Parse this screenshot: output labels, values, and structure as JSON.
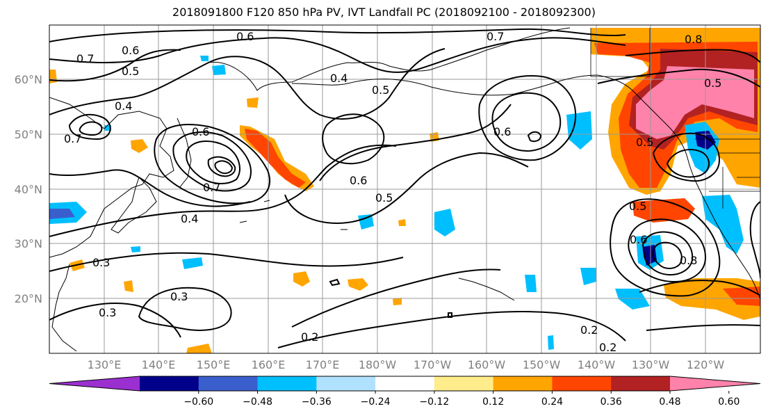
{
  "title": "2018091800 F120 850 hPa PV, IVT Landfall PC (2018092100 - 2018092300)",
  "lat_labels": [
    "60°N",
    "50°N",
    "40°N",
    "30°N",
    "20°N"
  ],
  "lon_labels": [
    "130°E",
    "140°E",
    "150°E",
    "160°E",
    "170°E",
    "180°W",
    "170°W",
    "160°W",
    "150°W",
    "140°W",
    "130°W",
    "120°W"
  ],
  "colorbar": {
    "tick_labels": [
      "−0.60",
      "−0.48",
      "−0.36",
      "−0.24",
      "−0.12",
      "0.12",
      "0.24",
      "0.36",
      "0.48",
      "0.60"
    ],
    "colors": [
      "#9b30d0",
      "#00008b",
      "#3a5fcd",
      "#00bfff",
      "#b0e2ff",
      "#ffffff",
      "#ffec8b",
      "#ffa500",
      "#ff4500",
      "#b22222",
      "#ff82ab"
    ]
  },
  "contour_labels": [
    "0.6",
    "0.7",
    "0.6",
    "0.5",
    "0.4",
    "0.4",
    "0.6",
    "0.6",
    "0.7",
    "0.4",
    "0.3",
    "0.3",
    "0.3",
    "0.2",
    "0.5",
    "0.6",
    "0.5",
    "0.7",
    "0.7",
    "0.8",
    "0.5",
    "0.5",
    "0.6",
    "0.8",
    "0.2",
    "0.2",
    "0.5"
  ]
}
